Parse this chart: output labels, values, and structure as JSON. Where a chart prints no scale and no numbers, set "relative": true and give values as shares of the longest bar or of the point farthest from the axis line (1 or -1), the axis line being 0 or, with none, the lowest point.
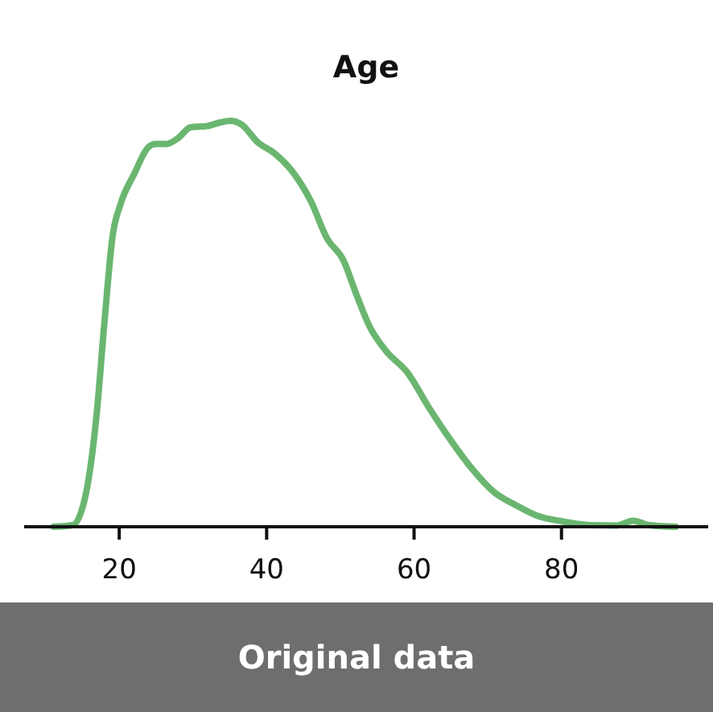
{
  "chart_data": {
    "type": "line",
    "title": "Age",
    "relative": true,
    "xlim": [
      7.1,
      99.9
    ],
    "xticks": [
      20,
      40,
      60,
      80
    ],
    "tick_labels": "x",
    "grid": false,
    "marker": "none",
    "line_style": "solid",
    "annotations": [
      "Original data"
    ],
    "series": [
      {
        "color": "#5aae61",
        "x": [
          11.1,
          13.7,
          15.5,
          16.9,
          18.0,
          19.1,
          20.2,
          22.0,
          23.9,
          24.9,
          26.4,
          27.9,
          29.7,
          31.9,
          33.7,
          35.1,
          36.6,
          38.8,
          41.0,
          43.5,
          46.0,
          48.2,
          50.4,
          52.2,
          54.0,
          56.2,
          59.1,
          62.0,
          64.9,
          67.9,
          70.8,
          73.7,
          76.6,
          80.2,
          83.9,
          87.5,
          89.7,
          91.9,
          95.5
        ],
        "values": [
          0,
          0.004,
          0.083,
          0.27,
          0.505,
          0.716,
          0.796,
          0.868,
          0.934,
          0.943,
          0.943,
          0.956,
          0.984,
          0.987,
          0.996,
          1,
          0.991,
          0.947,
          0.921,
          0.875,
          0.802,
          0.71,
          0.657,
          0.571,
          0.492,
          0.433,
          0.38,
          0.294,
          0.215,
          0.142,
          0.086,
          0.054,
          0.028,
          0.013,
          0.004,
          0.003,
          0.015,
          0.004,
          0
        ]
      }
    ]
  }
}
